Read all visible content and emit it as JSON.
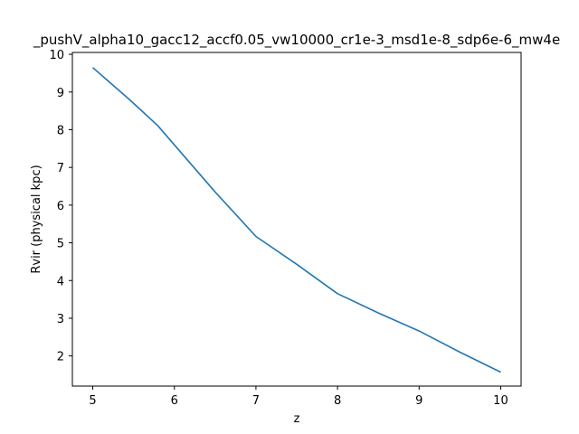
{
  "chart_data": {
    "type": "line",
    "title": "_pushV_alpha10_gacc12_accf0.05_vw10000_cr1e-3_msd1e-8_sdp6e-6_mw4e",
    "xlabel": "z",
    "ylabel": "Rvir (physical kpc)",
    "xlim": [
      4.75,
      10.25
    ],
    "ylim": [
      1.2,
      10.05
    ],
    "x_ticks": [
      "5",
      "6",
      "7",
      "8",
      "9",
      "10"
    ],
    "y_ticks": [
      "2",
      "3",
      "4",
      "5",
      "6",
      "7",
      "8",
      "9",
      "10"
    ],
    "grid": false,
    "line_color": "#1f77b4",
    "series": [
      {
        "x": [
          5.0,
          5.2,
          5.45,
          5.6,
          5.8,
          6.0,
          6.5,
          7.0,
          7.5,
          8.0,
          8.5,
          9.0,
          9.5,
          10.0
        ],
        "values": [
          9.65,
          9.27,
          8.8,
          8.5,
          8.1,
          7.6,
          6.35,
          5.17,
          4.43,
          3.65,
          3.14,
          2.66,
          2.1,
          1.57
        ]
      }
    ]
  }
}
